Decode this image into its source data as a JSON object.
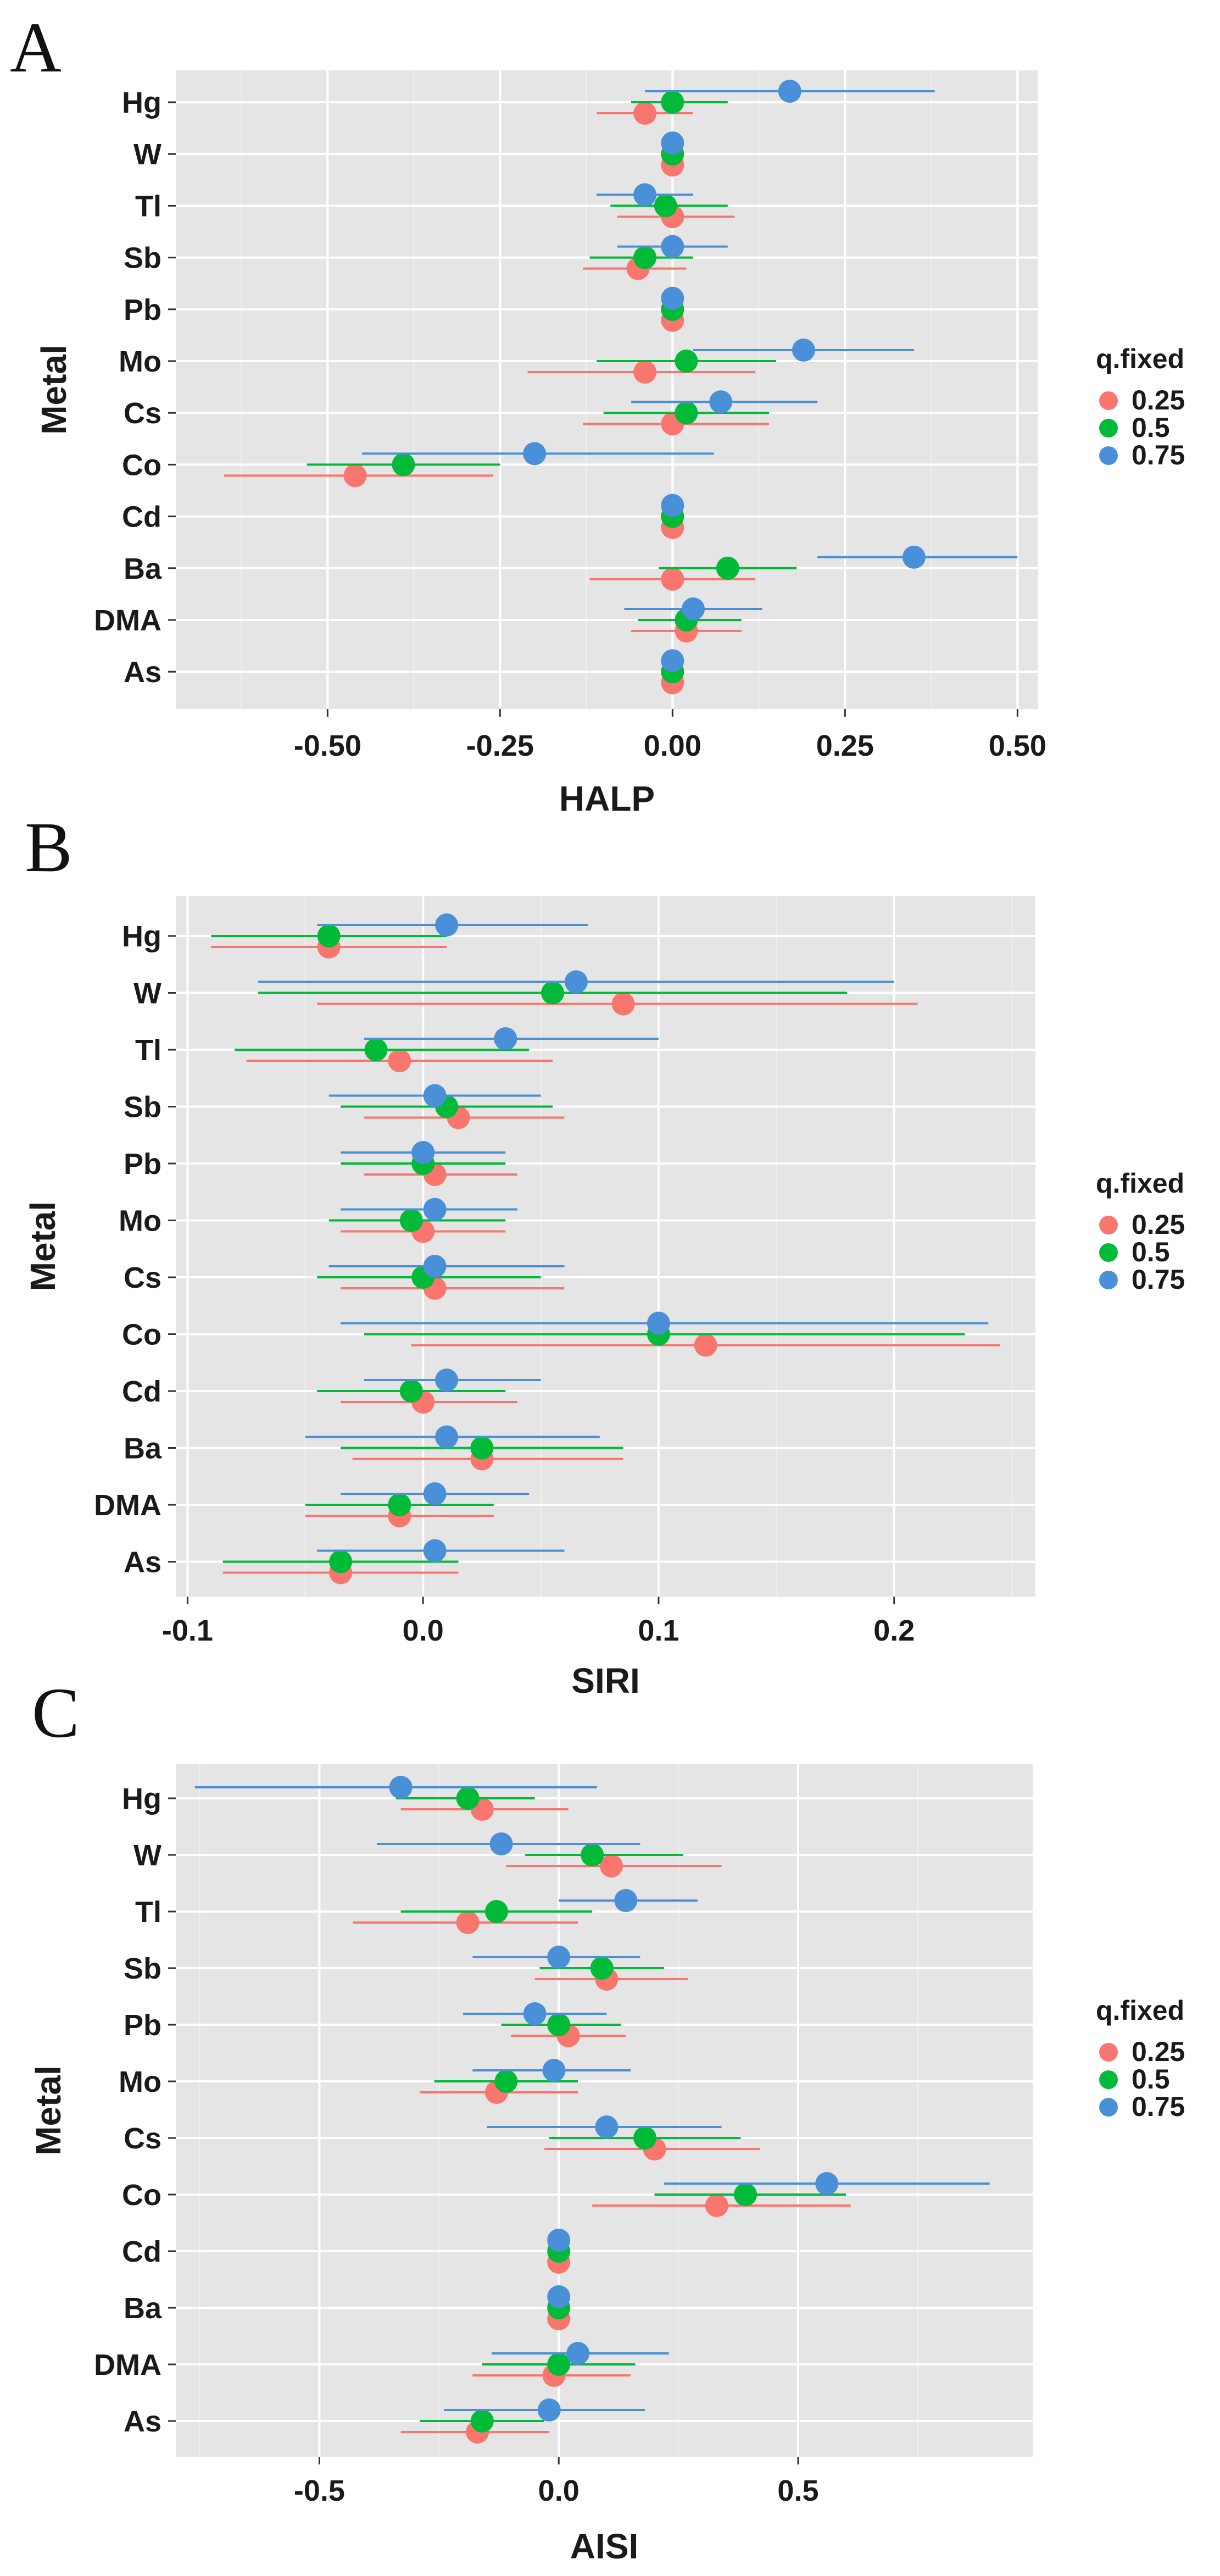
{
  "colors": {
    "q25": "#F8766D",
    "q50": "#00BA38",
    "q75": "#4A90D9",
    "panel_bg": "#E5E5E5",
    "grid_major": "#FFFFFF",
    "grid_minor": "#F0F0F0"
  },
  "legend": {
    "title": "q.fixed",
    "items": [
      "0.25",
      "0.5",
      "0.75"
    ]
  },
  "chart_data": [
    {
      "panel": "A",
      "type": "scatter",
      "title": "",
      "xlabel": "HALP",
      "ylabel": "Metal",
      "xlim": [
        -0.72,
        0.53
      ],
      "xticks": [
        -0.5,
        -0.25,
        0,
        0.25,
        0.5
      ],
      "xtick_labels": [
        "-0.50",
        "-0.25",
        "0.00",
        "0.25",
        "0.50"
      ],
      "categories": [
        "Hg",
        "W",
        "Tl",
        "Sb",
        "Pb",
        "Mo",
        "Cs",
        "Co",
        "Cd",
        "Ba",
        "DMA",
        "As"
      ],
      "series": [
        {
          "name": "0.25",
          "color_key": "q25",
          "values": [
            -0.04,
            0.0,
            0.0,
            -0.05,
            0.0,
            -0.04,
            0.0,
            -0.46,
            0.0,
            0.0,
            0.02,
            0.0
          ],
          "lower": [
            -0.11,
            0.0,
            -0.08,
            -0.13,
            0.0,
            -0.21,
            -0.13,
            -0.65,
            0.0,
            -0.12,
            -0.06,
            0.0
          ],
          "upper": [
            0.03,
            0.0,
            0.09,
            0.02,
            0.0,
            0.12,
            0.14,
            -0.26,
            0.0,
            0.12,
            0.1,
            0.0
          ]
        },
        {
          "name": "0.5",
          "color_key": "q50",
          "values": [
            0.0,
            0.0,
            -0.01,
            -0.04,
            0.0,
            0.02,
            0.02,
            -0.39,
            0.0,
            0.08,
            0.02,
            0.0
          ],
          "lower": [
            -0.06,
            0.0,
            -0.09,
            -0.12,
            0.0,
            -0.11,
            -0.1,
            -0.53,
            0.0,
            -0.02,
            -0.05,
            0.0
          ],
          "upper": [
            0.08,
            0.0,
            0.08,
            0.03,
            0.0,
            0.15,
            0.14,
            -0.25,
            0.0,
            0.18,
            0.1,
            0.0
          ]
        },
        {
          "name": "0.75",
          "color_key": "q75",
          "values": [
            0.17,
            0.0,
            -0.04,
            0.0,
            0.0,
            0.19,
            0.07,
            -0.2,
            0.0,
            0.35,
            0.03,
            0.0
          ],
          "lower": [
            -0.04,
            0.0,
            -0.11,
            -0.08,
            0.0,
            0.03,
            -0.06,
            -0.45,
            0.0,
            0.21,
            -0.07,
            0.0
          ],
          "upper": [
            0.38,
            0.0,
            0.03,
            0.08,
            0.0,
            0.35,
            0.21,
            0.06,
            0.0,
            0.5,
            0.13,
            0.0
          ]
        }
      ]
    },
    {
      "panel": "B",
      "type": "scatter",
      "title": "",
      "xlabel": "SIRI",
      "ylabel": "Metal",
      "xlim": [
        -0.105,
        0.26
      ],
      "xticks": [
        -0.1,
        0,
        0.1,
        0.2
      ],
      "xtick_labels": [
        "-0.1",
        "0.0",
        "0.1",
        "0.2"
      ],
      "categories": [
        "Hg",
        "W",
        "Tl",
        "Sb",
        "Pb",
        "Mo",
        "Cs",
        "Co",
        "Cd",
        "Ba",
        "DMA",
        "As"
      ],
      "series": [
        {
          "name": "0.25",
          "color_key": "q25",
          "values": [
            -0.04,
            0.085,
            -0.01,
            0.015,
            0.005,
            0.0,
            0.005,
            0.12,
            0.0,
            0.025,
            -0.01,
            -0.035
          ],
          "lower": [
            -0.09,
            -0.045,
            -0.075,
            -0.025,
            -0.025,
            -0.035,
            -0.035,
            -0.005,
            -0.035,
            -0.03,
            -0.05,
            -0.085
          ],
          "upper": [
            0.01,
            0.21,
            0.055,
            0.06,
            0.04,
            0.035,
            0.06,
            0.245,
            0.04,
            0.085,
            0.03,
            0.015
          ]
        },
        {
          "name": "0.5",
          "color_key": "q50",
          "values": [
            -0.04,
            0.055,
            -0.02,
            0.01,
            0.0,
            -0.005,
            0.0,
            0.1,
            -0.005,
            0.025,
            -0.01,
            -0.035
          ],
          "lower": [
            -0.09,
            -0.07,
            -0.08,
            -0.035,
            -0.035,
            -0.04,
            -0.045,
            -0.025,
            -0.045,
            -0.035,
            -0.05,
            -0.085
          ],
          "upper": [
            0.01,
            0.18,
            0.045,
            0.055,
            0.035,
            0.035,
            0.05,
            0.23,
            0.035,
            0.085,
            0.03,
            0.015
          ]
        },
        {
          "name": "0.75",
          "color_key": "q75",
          "values": [
            0.01,
            0.065,
            0.035,
            0.005,
            0.0,
            0.005,
            0.005,
            0.1,
            0.01,
            0.01,
            0.005,
            0.005
          ],
          "lower": [
            -0.045,
            -0.07,
            -0.025,
            -0.04,
            -0.035,
            -0.035,
            -0.04,
            -0.035,
            -0.025,
            -0.05,
            -0.035,
            -0.045
          ],
          "upper": [
            0.07,
            0.2,
            0.1,
            0.05,
            0.035,
            0.04,
            0.06,
            0.24,
            0.05,
            0.075,
            0.045,
            0.06
          ]
        }
      ]
    },
    {
      "panel": "C",
      "type": "scatter",
      "title": "",
      "xlabel": "AISI",
      "ylabel": "Metal",
      "xlim": [
        -0.8,
        0.99
      ],
      "xticks": [
        -0.5,
        0,
        0.5
      ],
      "xtick_labels": [
        "-0.5",
        "0.0",
        "0.5"
      ],
      "categories": [
        "Hg",
        "W",
        "Tl",
        "Sb",
        "Pb",
        "Mo",
        "Cs",
        "Co",
        "Cd",
        "Ba",
        "DMA",
        "As"
      ],
      "series": [
        {
          "name": "0.25",
          "color_key": "q25",
          "values": [
            -0.16,
            0.11,
            -0.19,
            0.1,
            0.02,
            -0.13,
            0.2,
            0.33,
            0.0,
            0.0,
            -0.01,
            -0.17
          ],
          "lower": [
            -0.33,
            -0.11,
            -0.43,
            -0.05,
            -0.1,
            -0.29,
            -0.03,
            0.07,
            0.0,
            0.0,
            -0.18,
            -0.33
          ],
          "upper": [
            0.02,
            0.34,
            0.04,
            0.27,
            0.14,
            0.04,
            0.42,
            0.61,
            0.0,
            0.0,
            0.15,
            -0.02
          ]
        },
        {
          "name": "0.5",
          "color_key": "q50",
          "values": [
            -0.19,
            0.07,
            -0.13,
            0.09,
            0.0,
            -0.11,
            0.18,
            0.39,
            0.0,
            0.0,
            0.0,
            -0.16
          ],
          "lower": [
            -0.34,
            -0.07,
            -0.33,
            -0.04,
            -0.12,
            -0.26,
            -0.02,
            0.2,
            0.0,
            0.0,
            -0.16,
            -0.29
          ],
          "upper": [
            -0.05,
            0.26,
            0.07,
            0.22,
            0.13,
            0.04,
            0.38,
            0.6,
            0.0,
            0.0,
            0.16,
            -0.03
          ]
        },
        {
          "name": "0.75",
          "color_key": "q75",
          "values": [
            -0.33,
            -0.12,
            0.14,
            0.0,
            -0.05,
            -0.01,
            0.1,
            0.56,
            0.0,
            0.0,
            0.04,
            -0.02
          ],
          "lower": [
            -0.76,
            -0.38,
            0.0,
            -0.18,
            -0.2,
            -0.18,
            -0.15,
            0.22,
            0.0,
            0.0,
            -0.14,
            -0.24
          ],
          "upper": [
            0.08,
            0.17,
            0.29,
            0.17,
            0.1,
            0.15,
            0.34,
            0.9,
            0.0,
            0.0,
            0.23,
            0.18
          ]
        }
      ]
    }
  ]
}
